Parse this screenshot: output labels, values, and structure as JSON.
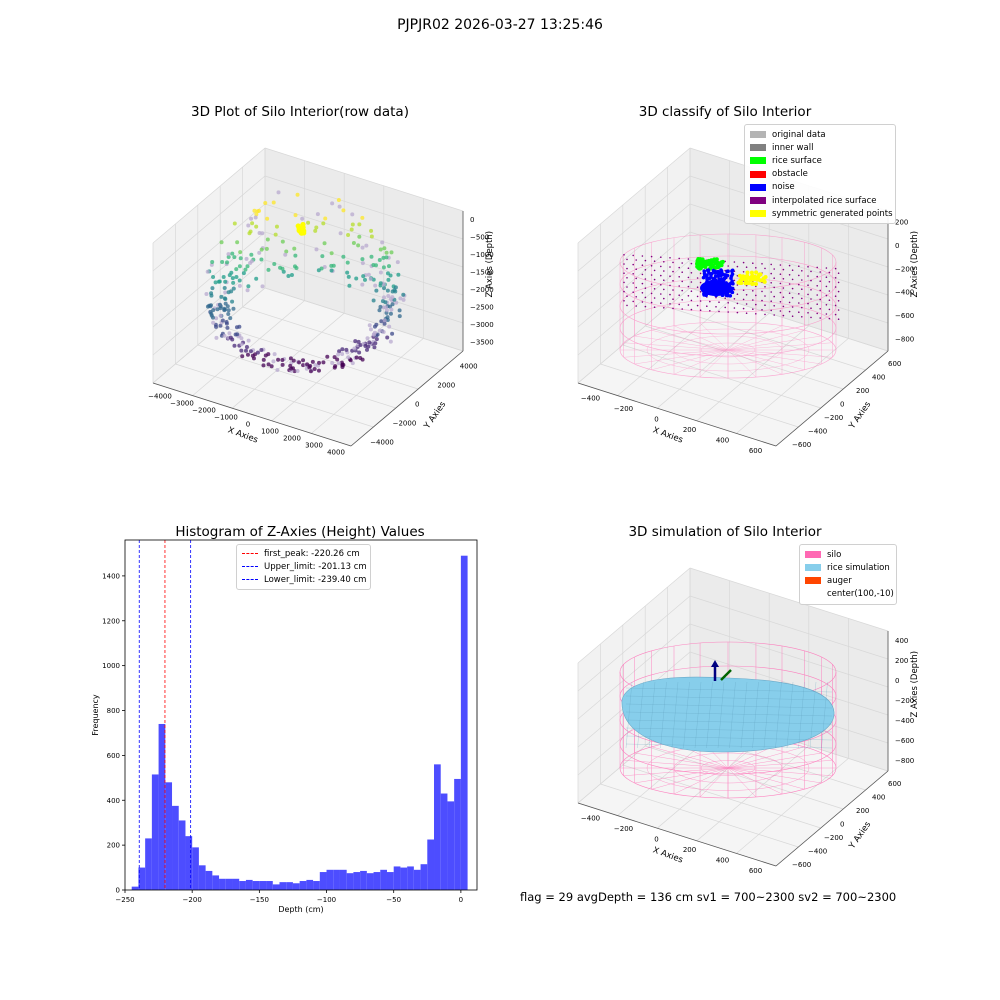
{
  "figure": {
    "suptitle": "PJPJR02 2026-03-27 13:25:46",
    "footer": "flag = 29  avgDepth = 136 cm  sv1 = 700~2300  sv2 = 700~2300"
  },
  "colors": {
    "histogram_bar": "#4d4dff",
    "first_peak_line": "#ff0000",
    "limit_lines": "#0000ff",
    "silo": "#ff69b4",
    "rice": "#87ceeb",
    "auger": "#ff4500",
    "rice_surface": "#00ff00",
    "noise": "#0000ff",
    "symmetric": "#ffff00",
    "interpolated": "#800080"
  },
  "chart_data": [
    {
      "type": "scatter",
      "projection": "3d",
      "title": "3D Plot of Silo Interior(row data)",
      "xlabel": "X Axies",
      "ylabel": "Y Axies",
      "zlabel": "Z Axies (Depth)",
      "xticks": [
        "−4000",
        "−3000",
        "−2000",
        "−1000",
        "0",
        "1000",
        "2000",
        "3000",
        "4000"
      ],
      "yticks": [
        "−4000",
        "−2000",
        "0",
        "2000",
        "4000"
      ],
      "zticks": [
        "0",
        "−500",
        "−1000",
        "−1500",
        "−2000",
        "−2500",
        "−3000",
        "−3500"
      ],
      "xlim": [
        -4000,
        4000
      ],
      "ylim": [
        -4000,
        4000
      ],
      "zlim": [
        -3800,
        0
      ],
      "point_count_estimate": 400,
      "colormap": "viridis"
    },
    {
      "type": "scatter",
      "projection": "3d",
      "title": "3D classify of Silo Interior",
      "xlabel": "X Axies",
      "ylabel": "Y Axies",
      "zlabel": "Z Axies (Depth)",
      "xticks": [
        "−400",
        "−200",
        "0",
        "200",
        "400",
        "600"
      ],
      "yticks": [
        "−600",
        "−400",
        "−200",
        "0",
        "200",
        "400",
        "600"
      ],
      "zticks": [
        "200",
        "0",
        "−200",
        "−400",
        "−600",
        "−800"
      ],
      "xlim": [
        -500,
        700
      ],
      "ylim": [
        -650,
        650
      ],
      "zlim": [
        -900,
        300
      ],
      "legend": {
        "placement": "upper right",
        "entries": [
          {
            "label": "original data",
            "color": "#b4b4b4"
          },
          {
            "label": "inner wall",
            "color": "#808080"
          },
          {
            "label": "rice surface",
            "color": "#00ff00"
          },
          {
            "label": "obstacle",
            "color": "#ff0000"
          },
          {
            "label": "noise",
            "color": "#0000ff"
          },
          {
            "label": "interpolated rice surface",
            "color": "#800080"
          },
          {
            "label": "symmetric generated points",
            "color": "#ffff00"
          }
        ]
      }
    },
    {
      "type": "bar",
      "title": "Histogram of Z-Axies (Height) Values",
      "xlabel": "Depth (cm)",
      "ylabel": "Frequency",
      "xlim": [
        -250,
        12
      ],
      "ylim": [
        0,
        1560
      ],
      "xticks": [
        -250,
        -200,
        -150,
        -100,
        -50,
        0
      ],
      "yticks": [
        0,
        200,
        400,
        600,
        800,
        1000,
        1200,
        1400
      ],
      "bin_width": 5,
      "bin_start": -245,
      "bin_counts": [
        15,
        100,
        230,
        515,
        740,
        480,
        375,
        310,
        240,
        190,
        110,
        85,
        65,
        50,
        50,
        50,
        40,
        45,
        40,
        40,
        40,
        25,
        35,
        35,
        30,
        40,
        45,
        40,
        80,
        90,
        90,
        90,
        75,
        80,
        85,
        75,
        80,
        90,
        80,
        105,
        100,
        105,
        90,
        115,
        225,
        560,
        430,
        395,
        495,
        1490
      ],
      "vlines": [
        {
          "x": -220.26,
          "label": "first_peak: -220.26 cm",
          "style": "dashed",
          "color": "#ff0000"
        },
        {
          "x": -201.13,
          "label": "Upper_limit: -201.13 cm",
          "style": "dashed",
          "color": "#0000ff"
        },
        {
          "x": -239.4,
          "label": "Lower_limit: -239.40 cm",
          "style": "dashed",
          "color": "#0000ff"
        }
      ],
      "legend": {
        "placement": "upper center"
      }
    },
    {
      "type": "surface",
      "projection": "3d",
      "title": "3D simulation of Silo Interior",
      "xlabel": "X Axies",
      "ylabel": "Y Axies",
      "zlabel": "Z Axies (Depth)",
      "xticks": [
        "−400",
        "−200",
        "0",
        "200",
        "400",
        "600"
      ],
      "yticks": [
        "−600",
        "−400",
        "−200",
        "0",
        "200",
        "400",
        "600"
      ],
      "zticks": [
        "400",
        "200",
        "0",
        "−200",
        "−400",
        "−600",
        "−800"
      ],
      "xlim": [
        -500,
        700
      ],
      "ylim": [
        -650,
        650
      ],
      "zlim": [
        -900,
        450
      ],
      "legend": {
        "placement": "upper right",
        "entries": [
          {
            "label": "silo",
            "color": "#ff69b4"
          },
          {
            "label": "rice simulation",
            "color": "#87ceeb"
          },
          {
            "label": "auger",
            "color": "#ff4500"
          },
          {
            "label": "center(100,-10)",
            "color": ""
          }
        ]
      }
    }
  ]
}
